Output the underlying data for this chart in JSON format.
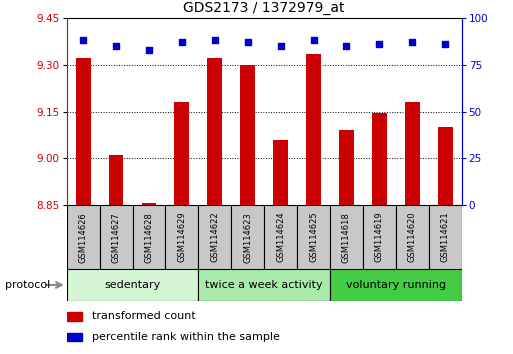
{
  "title": "GDS2173 / 1372979_at",
  "samples": [
    "GSM114626",
    "GSM114627",
    "GSM114628",
    "GSM114629",
    "GSM114622",
    "GSM114623",
    "GSM114624",
    "GSM114625",
    "GSM114618",
    "GSM114619",
    "GSM114620",
    "GSM114621"
  ],
  "transformed_count": [
    9.32,
    9.01,
    8.857,
    9.18,
    9.32,
    9.3,
    9.06,
    9.335,
    9.09,
    9.145,
    9.18,
    9.1
  ],
  "percentile_rank": [
    88,
    85,
    83,
    87,
    88,
    87,
    85,
    88,
    85,
    86,
    87,
    86
  ],
  "ylim_left": [
    8.85,
    9.45
  ],
  "ylim_right": [
    0,
    100
  ],
  "yticks_left": [
    8.85,
    9.0,
    9.15,
    9.3,
    9.45
  ],
  "yticks_right": [
    0,
    25,
    50,
    75,
    100
  ],
  "groups": [
    {
      "label": "sedentary",
      "start": 0,
      "end": 4,
      "color": "#d4f5d4"
    },
    {
      "label": "twice a week activity",
      "start": 4,
      "end": 8,
      "color": "#aaeaaa"
    },
    {
      "label": "voluntary running",
      "start": 8,
      "end": 12,
      "color": "#44cc44"
    }
  ],
  "bar_color": "#cc0000",
  "dot_color": "#0000cc",
  "bar_bottom": 8.85,
  "bar_width": 0.45,
  "protocol_label": "protocol",
  "legend_items": [
    {
      "label": "transformed count",
      "color": "#cc0000"
    },
    {
      "label": "percentile rank within the sample",
      "color": "#0000cc"
    }
  ],
  "bg_color": "#ffffff",
  "label_box_color": "#c8c8c8",
  "font_size_tick": 7.5,
  "font_size_sample": 6,
  "font_size_group": 8,
  "font_size_title": 10,
  "font_size_legend": 8
}
